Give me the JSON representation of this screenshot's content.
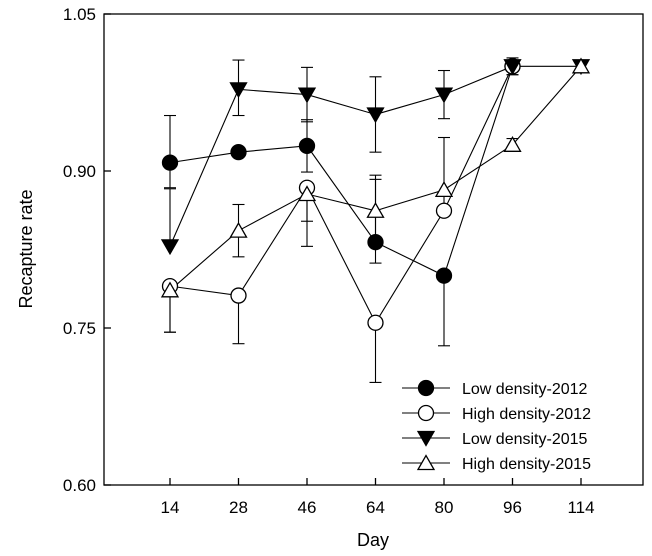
{
  "chart_data": {
    "type": "line",
    "xlabel": "Day",
    "ylabel": "Recapture rate",
    "ylim": [
      0.6,
      1.05
    ],
    "yticks": [
      0.6,
      0.75,
      0.9,
      1.05
    ],
    "ytick_labels": [
      "0.60",
      "0.75",
      "0.90",
      "1.05"
    ],
    "categories": [
      "14",
      "28",
      "46",
      "64",
      "80",
      "96",
      "114"
    ],
    "legend_position": "bottom-right",
    "grid": false,
    "series": [
      {
        "name": "Low density-2012",
        "marker": "circle-filled",
        "x": [
          "14",
          "28",
          "46",
          "64",
          "80",
          "96"
        ],
        "y": [
          0.908,
          0.918,
          0.924,
          0.832,
          0.8,
          1.0
        ],
        "err_up": [
          0.045,
          0.0,
          0.025,
          0.064,
          0.0,
          0.008
        ],
        "err_down": [
          0.024,
          0.0,
          0.025,
          0.02,
          0.067,
          0.008
        ]
      },
      {
        "name": "High density-2012",
        "marker": "circle-open",
        "x": [
          "14",
          "28",
          "46",
          "64",
          "80",
          "96"
        ],
        "y": [
          0.79,
          0.781,
          0.884,
          0.755,
          0.862,
          1.0
        ],
        "err_up": [
          0.0,
          0.0,
          0.0,
          0.0,
          0.07,
          0.008
        ],
        "err_down": [
          0.044,
          0.046,
          0.056,
          0.057,
          0.0,
          0.008
        ]
      },
      {
        "name": "Low density-2015",
        "marker": "triangle-down-filled",
        "x": [
          "14",
          "28",
          "46",
          "64",
          "80",
          "96",
          "114"
        ],
        "y": [
          0.828,
          0.978,
          0.973,
          0.954,
          0.973,
          1.0,
          1.0
        ],
        "err_up": [
          0.055,
          0.028,
          0.026,
          0.036,
          0.023,
          0.0,
          0.0
        ],
        "err_down": [
          0.0,
          0.025,
          0.026,
          0.036,
          0.023,
          0.0,
          0.0
        ]
      },
      {
        "name": "High density-2015",
        "marker": "triangle-up-open",
        "x": [
          "14",
          "28",
          "46",
          "64",
          "80",
          "96",
          "114"
        ],
        "y": [
          0.786,
          0.843,
          0.878,
          0.862,
          0.882,
          0.925,
          1.0
        ],
        "err_up": [
          0.0,
          0.025,
          0.0,
          0.03,
          0.0,
          0.006,
          0.0
        ],
        "err_down": [
          0.04,
          0.025,
          0.026,
          0.03,
          0.0,
          0.006,
          0.0
        ]
      }
    ]
  }
}
